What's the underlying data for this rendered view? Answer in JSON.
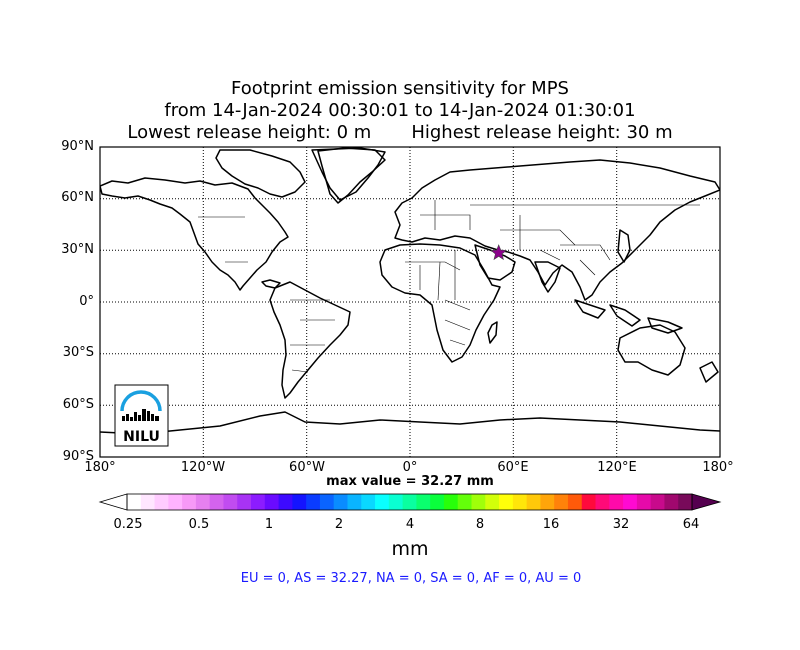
{
  "title": {
    "line1": "Footprint emission sensitivity for MPS",
    "line2": "from 14-Jan-2024 00:30:01 to 14-Jan-2024 01:30:01",
    "line3": "Lowest release height: 0 m       Highest release height: 30 m"
  },
  "map": {
    "lat_labels": [
      "90°N",
      "60°N",
      "30°N",
      "0°",
      "30°S",
      "60°S",
      "90°S"
    ],
    "lon_labels": [
      "180°",
      "120°W",
      "60°W",
      "0°",
      "60°E",
      "120°E",
      "180°"
    ],
    "release_site": {
      "lon": 51.5,
      "lat": 28.5,
      "marker": "star",
      "color": "#8b008b"
    },
    "grid": "dotted",
    "logo": {
      "text": "NILU",
      "position": "bottom-left"
    }
  },
  "max_value": "max value = 32.27 mm",
  "colorbar": {
    "tick_labels": [
      "0.25",
      "0.5",
      "1",
      "2",
      "4",
      "8",
      "16",
      "32",
      "64"
    ],
    "unit": "mm",
    "colors": [
      "#ffffff",
      "#ffe6ff",
      "#ffccff",
      "#ffb3ff",
      "#f799f7",
      "#e680f0",
      "#d463ee",
      "#c14cf0",
      "#a833f5",
      "#8c1cff",
      "#6a0bff",
      "#3d0aff",
      "#1414ff",
      "#0a3cff",
      "#0a64ff",
      "#0a8cff",
      "#0ab4ff",
      "#0ad8ff",
      "#0affff",
      "#0affd2",
      "#0affa0",
      "#0aff6e",
      "#0aff3c",
      "#28ff0a",
      "#64ff0a",
      "#a0ff0a",
      "#d2ff0a",
      "#ffff0a",
      "#ffe60a",
      "#ffc80a",
      "#ffa50a",
      "#ff820a",
      "#ff5a0a",
      "#ff0a3c",
      "#ff0a78",
      "#ff0aaa",
      "#ff0ad2",
      "#e60aaa",
      "#c80a8c",
      "#a0086e",
      "#780a5a"
    ]
  },
  "regions": "EU = 0,  AS = 32.27,  NA = 0,  SA = 0,  AF = 0,  AU = 0"
}
